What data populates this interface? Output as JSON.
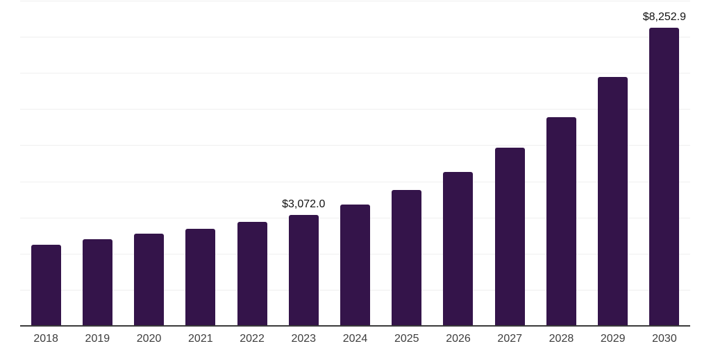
{
  "chart_data": {
    "type": "bar",
    "title": "",
    "xlabel": "",
    "ylabel": "",
    "categories": [
      "2018",
      "2019",
      "2020",
      "2021",
      "2022",
      "2023",
      "2024",
      "2025",
      "2026",
      "2027",
      "2028",
      "2029",
      "2030"
    ],
    "values": [
      2245,
      2390,
      2545,
      2678,
      2879,
      3072.0,
      3358,
      3760,
      4270,
      4940,
      5776,
      6880,
      8252.9
    ],
    "data_labels": [
      {
        "category": "2023",
        "text": "$3,072.0"
      },
      {
        "category": "2030",
        "text": "$8,252.9"
      }
    ],
    "ylim": [
      0,
      9000
    ],
    "gridline_step": 1000,
    "grid": true,
    "legend": false,
    "y_tick_labels_visible": false,
    "colors": {
      "bar": "#34144A",
      "gridline": "#efefef",
      "axis_line": "#3a3a3a",
      "tick_label": "#3d3d3d",
      "data_label": "#111111",
      "background": "#ffffff"
    }
  }
}
